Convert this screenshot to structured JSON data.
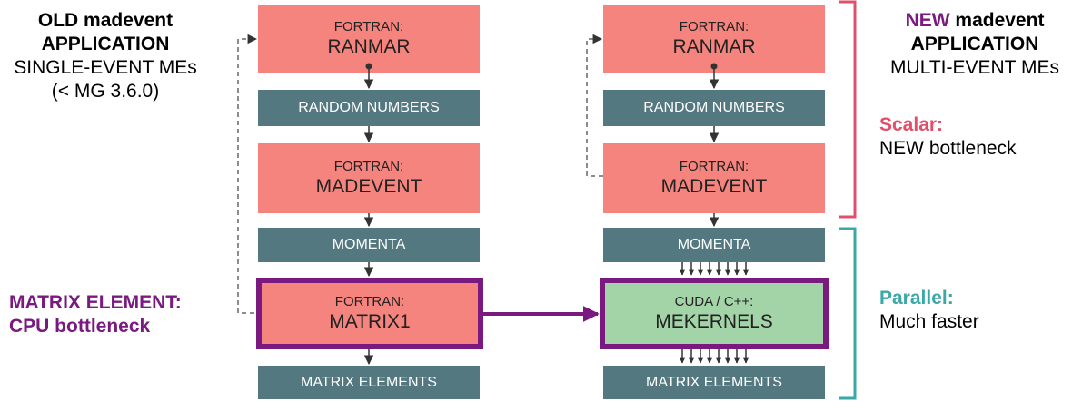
{
  "left_title": {
    "line1": "OLD madevent",
    "line2": "APPLICATION",
    "line3": "SINGLE-EVENT MEs",
    "line4": "(< MG 3.6.0)"
  },
  "left_bottleneck": {
    "line1": "MATRIX ELEMENT:",
    "line2": "CPU bottleneck"
  },
  "old_app": {
    "ranmar": {
      "prefix": "FORTRAN:",
      "name": "RANMAR"
    },
    "random": "RANDOM NUMBERS",
    "madevent": {
      "prefix": "FORTRAN:",
      "name": "MADEVENT"
    },
    "momenta": "MOMENTA",
    "matrix1": {
      "prefix": "FORTRAN:",
      "name": "MATRIX1"
    },
    "matrix_elements": "MATRIX ELEMENTS"
  },
  "new_app": {
    "ranmar": {
      "prefix": "FORTRAN:",
      "name": "RANMAR"
    },
    "random": "RANDOM NUMBERS",
    "madevent": {
      "prefix": "FORTRAN:",
      "name": "MADEVENT"
    },
    "momenta": "MOMENTA",
    "mekernels": {
      "prefix": "CUDA / C++:",
      "name": "MEKERNELS"
    },
    "matrix_elements": "MATRIX ELEMENTS"
  },
  "right_title": {
    "new_word": "NEW",
    "rest_line1": " madevent",
    "line2": "APPLICATION",
    "line3": "MULTI-EVENT MEs"
  },
  "scalar": {
    "head": "Scalar:",
    "text": "NEW bottleneck"
  },
  "parallel": {
    "head": "Parallel:",
    "text": "Much faster"
  },
  "colors": {
    "fortran_box": "#f4847d",
    "data_box": "#537880",
    "cuda_box": "#a3d4a8",
    "highlight": "#7a1a80",
    "scalar": "#e0506a",
    "parallel": "#3aa8a8"
  }
}
